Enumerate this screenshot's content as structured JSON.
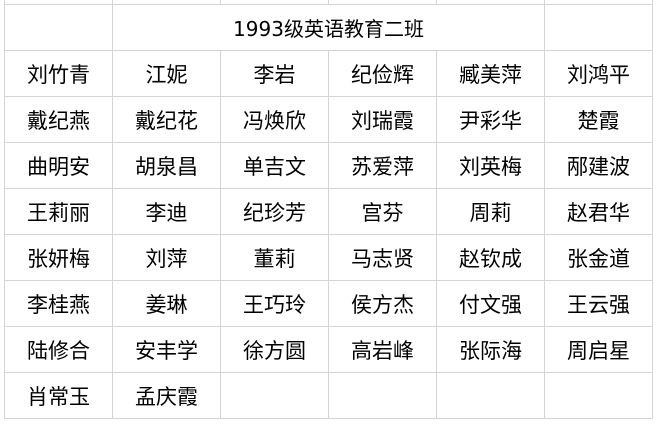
{
  "sheet": {
    "title": "1993级英语教育二班",
    "rows": [
      [
        "刘竹青",
        "江妮",
        "李岩",
        "纪俭辉",
        "臧美萍",
        "刘鸿平"
      ],
      [
        "戴纪燕",
        "戴纪花",
        "冯焕欣",
        "刘瑞霞",
        "尹彩华",
        "楚霞"
      ],
      [
        "曲明安",
        "胡泉昌",
        "单吉文",
        "苏爱萍",
        "刘英梅",
        "邴建波"
      ],
      [
        "王莉丽",
        "李迪",
        "纪珍芳",
        "宫芬",
        "周莉",
        "赵君华"
      ],
      [
        "张妍梅",
        "刘萍",
        "董莉",
        "马志贤",
        "赵钦成",
        "张金道"
      ],
      [
        "李桂燕",
        "姜琳",
        "王巧玲",
        "侯方杰",
        "付文强",
        "王云强"
      ],
      [
        "陆修合",
        "安丰学",
        "徐方圆",
        "高岩峰",
        "张际海",
        "周启星"
      ],
      [
        "肖常玉",
        "孟庆霞",
        "",
        "",
        "",
        ""
      ]
    ]
  }
}
